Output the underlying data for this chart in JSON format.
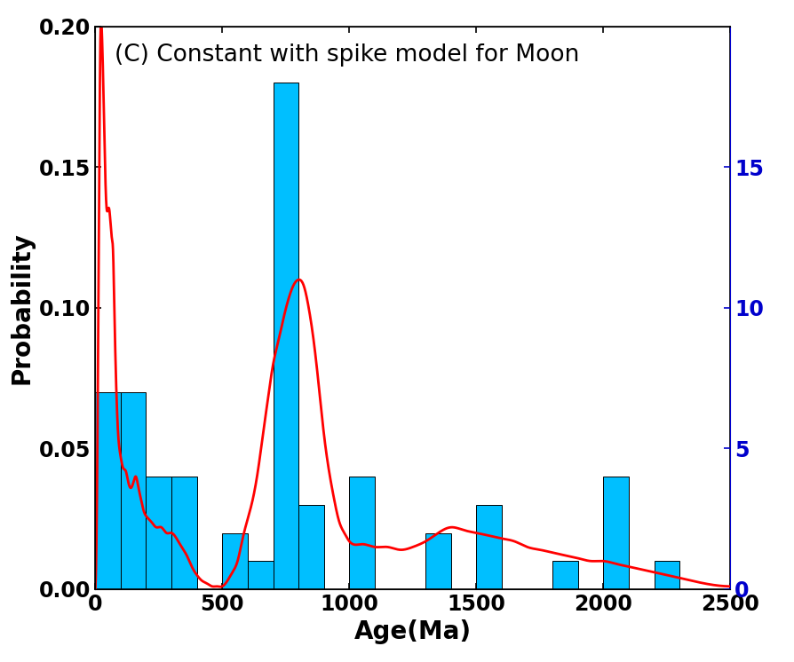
{
  "title": "(C) Constant with spike model for Moon",
  "xlabel": "Age(Ma)",
  "ylabel": "Probability",
  "bar_color": "#00BFFF",
  "bar_edge_color": "#000000",
  "line_color": "#FF0000",
  "right_axis_color": "#0000CC",
  "xlim": [
    0,
    2500
  ],
  "ylim": [
    0,
    0.2
  ],
  "ylim_right": [
    0,
    20
  ],
  "yticks_left": [
    0.0,
    0.05,
    0.1,
    0.15,
    0.2
  ],
  "yticks_right": [
    0,
    5,
    10,
    15
  ],
  "xticks": [
    0,
    500,
    1000,
    1500,
    2000,
    2500
  ],
  "title_fontsize": 19,
  "label_fontsize": 20,
  "tick_fontsize": 17,
  "bin_edges": [
    0,
    100,
    200,
    300,
    400,
    500,
    600,
    700,
    800,
    900,
    1000,
    1100,
    1200,
    1300,
    1400,
    1500,
    1600,
    1700,
    1800,
    1900,
    2000,
    2100,
    2200,
    2300,
    2400,
    2500
  ],
  "bin_heights_prob": [
    0.07,
    0.07,
    0.04,
    0.04,
    0.0,
    0.02,
    0.01,
    0.18,
    0.03,
    0.0,
    0.04,
    0.0,
    0.0,
    0.02,
    0.0,
    0.03,
    0.0,
    0.0,
    0.01,
    0.0,
    0.04,
    0.0,
    0.01,
    0.0,
    0.0
  ],
  "curve_x": [
    0,
    5,
    10,
    15,
    20,
    25,
    30,
    35,
    40,
    45,
    50,
    55,
    60,
    65,
    70,
    75,
    80,
    85,
    90,
    95,
    100,
    110,
    120,
    130,
    140,
    150,
    160,
    170,
    180,
    190,
    200,
    220,
    240,
    260,
    280,
    300,
    320,
    340,
    360,
    380,
    400,
    420,
    440,
    460,
    480,
    500,
    520,
    540,
    560,
    580,
    600,
    620,
    640,
    660,
    680,
    700,
    720,
    740,
    760,
    780,
    800,
    820,
    840,
    860,
    880,
    900,
    920,
    940,
    960,
    980,
    1000,
    1050,
    1100,
    1150,
    1200,
    1250,
    1300,
    1350,
    1400,
    1450,
    1500,
    1550,
    1600,
    1650,
    1700,
    1750,
    1800,
    1850,
    1900,
    1950,
    2000,
    2050,
    2100,
    2150,
    2200,
    2300,
    2400,
    2500
  ],
  "curve_y": [
    0.0,
    0.02,
    0.07,
    0.14,
    0.195,
    0.2,
    0.185,
    0.165,
    0.145,
    0.135,
    0.135,
    0.135,
    0.13,
    0.125,
    0.12,
    0.1,
    0.08,
    0.065,
    0.055,
    0.05,
    0.047,
    0.043,
    0.042,
    0.038,
    0.036,
    0.038,
    0.04,
    0.036,
    0.032,
    0.028,
    0.026,
    0.024,
    0.022,
    0.022,
    0.02,
    0.02,
    0.018,
    0.015,
    0.012,
    0.008,
    0.005,
    0.003,
    0.002,
    0.001,
    0.001,
    0.001,
    0.003,
    0.006,
    0.01,
    0.018,
    0.025,
    0.032,
    0.042,
    0.055,
    0.068,
    0.08,
    0.088,
    0.096,
    0.103,
    0.108,
    0.11,
    0.108,
    0.1,
    0.088,
    0.072,
    0.055,
    0.042,
    0.032,
    0.024,
    0.02,
    0.017,
    0.016,
    0.015,
    0.015,
    0.014,
    0.015,
    0.017,
    0.02,
    0.022,
    0.021,
    0.02,
    0.019,
    0.018,
    0.017,
    0.015,
    0.014,
    0.013,
    0.012,
    0.011,
    0.01,
    0.01,
    0.009,
    0.008,
    0.007,
    0.006,
    0.004,
    0.002,
    0.001
  ]
}
